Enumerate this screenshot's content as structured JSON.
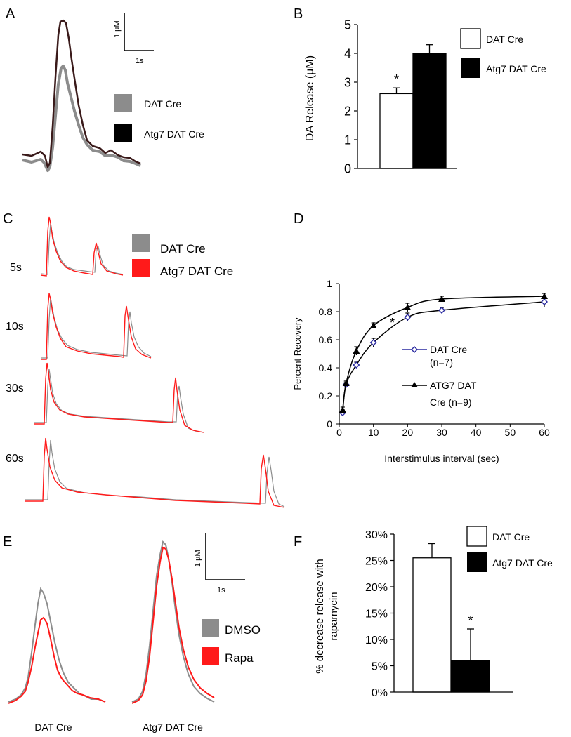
{
  "colors": {
    "gray": "#8c8c8c",
    "black": "#000000",
    "red": "#ff1a1a",
    "darkred": "#3a1a1a",
    "blue": "#2a2aa0",
    "white": "#ffffff"
  },
  "panel_letters": [
    "A",
    "B",
    "C",
    "D",
    "E",
    "F"
  ],
  "chart_data": [
    {
      "panel": "A",
      "type": "line",
      "title": "",
      "scale_bar": {
        "y_label": "1 µM",
        "x_label": "1s"
      },
      "legend": [
        "DAT Cre",
        "Atg7 DAT Cre"
      ]
    },
    {
      "panel": "B",
      "type": "bar",
      "title": "",
      "categories": [
        "DAT Cre",
        "Atg7 DAT Cre"
      ],
      "values": [
        2.6,
        4.0
      ],
      "errors": [
        0.2,
        0.3
      ],
      "significance": [
        "*",
        ""
      ],
      "ylabel": "DA Release (µM)",
      "ylim": [
        0,
        5
      ],
      "yticks": [
        "0",
        "1",
        "2",
        "3",
        "4",
        "5"
      ],
      "legend": [
        "DAT Cre",
        "Atg7 DAT Cre"
      ]
    },
    {
      "panel": "C",
      "type": "line",
      "title": "",
      "row_labels": [
        "5s",
        "10s",
        "30s",
        "60s"
      ],
      "legend": [
        "DAT Cre",
        "Atg7 DAT Cre"
      ]
    },
    {
      "panel": "D",
      "type": "scatter",
      "title": "",
      "xlabel": "Interstimulus interval (sec)",
      "ylabel": "Percent Recovery",
      "xlim": [
        0,
        60
      ],
      "ylim": [
        0,
        1
      ],
      "xticks": [
        "0",
        "10",
        "20",
        "30",
        "40",
        "50",
        "60"
      ],
      "yticks": [
        "0",
        "0.2",
        "0.4",
        "0.6",
        "0.8",
        "1"
      ],
      "x": [
        1,
        2,
        5,
        10,
        20,
        30,
        60
      ],
      "series": [
        {
          "name": "DAT Cre",
          "legend_lines": [
            "DAT Cre",
            "(n=7)"
          ],
          "values": [
            0.08,
            0.28,
            0.42,
            0.58,
            0.76,
            0.81,
            0.87
          ],
          "errors": [
            0.02,
            0.02,
            0.02,
            0.03,
            0.03,
            0.02,
            0.04
          ]
        },
        {
          "name": "ATG7 DAT Cre",
          "legend_lines": [
            "ATG7 DAT",
            "Cre (n=9)"
          ],
          "values": [
            0.1,
            0.29,
            0.52,
            0.7,
            0.83,
            0.89,
            0.91
          ],
          "errors": [
            0.02,
            0.02,
            0.03,
            0.02,
            0.03,
            0.02,
            0.02
          ]
        }
      ],
      "annotation": "*"
    },
    {
      "panel": "E",
      "type": "line",
      "title": "",
      "scale_bar": {
        "y_label": "1 µM",
        "x_label": "1s"
      },
      "group_labels": [
        "DAT Cre",
        "Atg7 DAT Cre"
      ],
      "legend": [
        "DMSO",
        "Rapa"
      ]
    },
    {
      "panel": "F",
      "type": "bar",
      "title": "",
      "categories": [
        "DAT Cre",
        "Atg7 DAT Cre"
      ],
      "values": [
        25.5,
        6
      ],
      "errors": [
        2.7,
        6
      ],
      "significance": [
        "",
        "*"
      ],
      "ylabel_lines": [
        "% decrease release with",
        "rapamycin"
      ],
      "ylim": [
        0,
        30
      ],
      "yticks": [
        "0%",
        "5%",
        "10%",
        "15%",
        "20%",
        "25%",
        "30%"
      ],
      "legend": [
        "DAT Cre",
        "Atg7 DAT Cre"
      ]
    }
  ]
}
